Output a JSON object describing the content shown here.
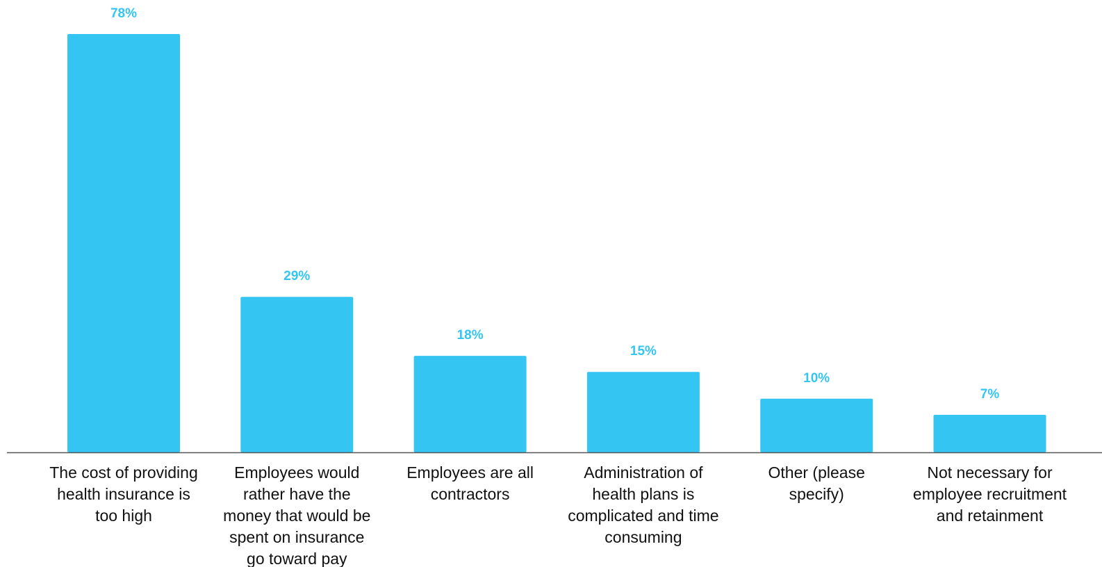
{
  "chart_data": {
    "type": "bar",
    "title": "",
    "xlabel": "",
    "ylabel": "",
    "ylim": [
      0,
      78
    ],
    "grid": false,
    "legend": "none",
    "bar_color": "#35C5F3",
    "label_color": "#35C5F3",
    "axis_color": "#555555",
    "categories": [
      [
        "The cost of providing",
        "health insurance is",
        "too high"
      ],
      [
        "Employees would",
        "rather have the",
        "money that would be",
        "spent on insurance",
        "go toward pay"
      ],
      [
        "Employees are all",
        "contractors"
      ],
      [
        "Administration of",
        "health plans is",
        "complicated and time",
        "consuming"
      ],
      [
        "Other (please",
        "specify)"
      ],
      [
        "Not necessary for",
        "employee recruitment",
        "and retainment"
      ]
    ],
    "values": [
      78,
      29,
      18,
      15,
      10,
      7
    ],
    "data_labels": [
      "78%",
      "29%",
      "18%",
      "15%",
      "10%",
      "7%"
    ]
  }
}
